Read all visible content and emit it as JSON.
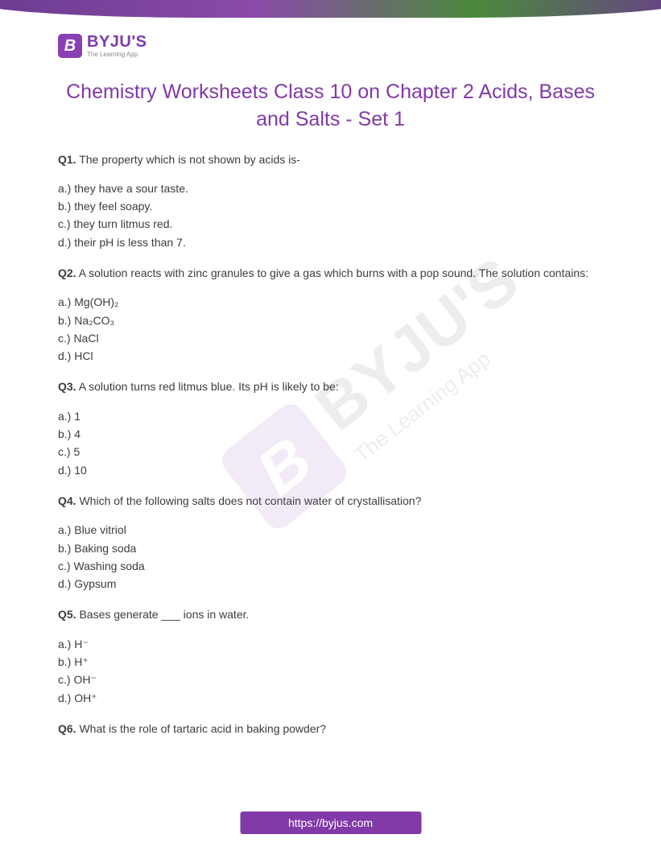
{
  "brand": {
    "logo_letter": "B",
    "name": "BYJU'S",
    "tagline": "The Learning App",
    "primary_color": "#813aa8",
    "logo_bg": "#8a3fb5"
  },
  "title": "Chemistry Worksheets Class 10 on Chapter 2 Acids, Bases and Salts - Set 1",
  "questions": [
    {
      "prefix": "Q1.",
      "text": "The property which is not shown by acids is-",
      "options": [
        "a.) they have a sour taste.",
        "b.) they feel soapy.",
        "c.) they turn litmus red.",
        "d.) their pH is less than 7."
      ]
    },
    {
      "prefix": "Q2.",
      "text": "A solution reacts with zinc granules to give a gas which burns with a pop sound. The solution contains:",
      "options": [
        "a.) Mg(OH)₂",
        "b.) Na₂CO₃",
        "c.) NaCl",
        "d.) HCl"
      ]
    },
    {
      "prefix": "Q3.",
      "text": "A solution turns red litmus blue. Its pH is likely to be:",
      "options": [
        "a.) 1",
        "b.) 4",
        "c.) 5",
        "d.) 10"
      ]
    },
    {
      "prefix": "Q4.",
      "text": "Which of the following salts does not contain water of crystallisation?",
      "options": [
        "a.) Blue vitriol",
        "b.) Baking soda",
        "c.) Washing soda",
        "d.) Gypsum"
      ]
    },
    {
      "prefix": "Q5.",
      "text": "Bases generate ___ ions in water.",
      "options": [
        "a.) H⁻",
        "b.) H⁺",
        "c.) OH⁻",
        "d.) OH⁺"
      ]
    },
    {
      "prefix": "Q6.",
      "text": "What is the role of tartaric acid in baking powder?",
      "options": []
    }
  ],
  "footer_url": "https://byjus.com",
  "text_color": "#3c3c3c",
  "title_color": "#813aa8"
}
